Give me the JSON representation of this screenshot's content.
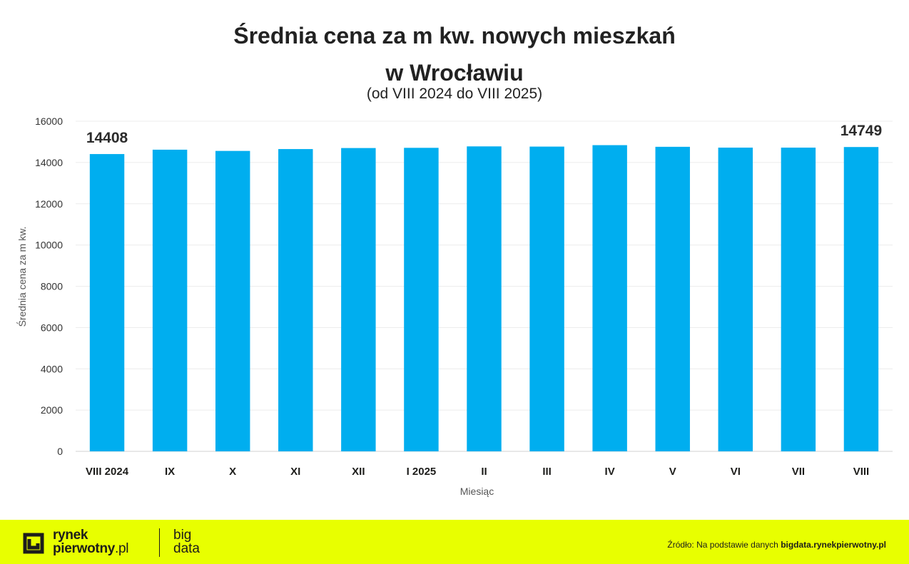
{
  "chart_data": {
    "type": "bar",
    "title_line1": "Średnia cena za m kw. nowych mieszkań",
    "title_line2": "w Wrocławiu",
    "subtitle": "(od VIII 2024 do VIII 2025)",
    "xlabel": "Miesiąc",
    "ylabel": "Średnia cena za m kw.",
    "categories": [
      "VIII 2024",
      "IX",
      "X",
      "XI",
      "XII",
      "I 2025",
      "II",
      "III",
      "IV",
      "V",
      "VI",
      "VII",
      "VIII"
    ],
    "values": [
      14408,
      14620,
      14560,
      14650,
      14700,
      14710,
      14780,
      14770,
      14840,
      14760,
      14720,
      14720,
      14749
    ],
    "data_labels": [
      {
        "index": 0,
        "text": "14408"
      },
      {
        "index": 12,
        "text": "14749"
      }
    ],
    "ylim": [
      0,
      16000
    ],
    "yticks": [
      0,
      2000,
      4000,
      6000,
      8000,
      10000,
      12000,
      14000,
      16000
    ],
    "grid": true,
    "legend": "none",
    "bar_color": "#00aeef"
  },
  "footer": {
    "logo_line1": "rynek",
    "logo_line2_bold": "pierwotny",
    "logo_line2_light": ".pl",
    "brand2_line1": "big",
    "brand2_line2": "data",
    "source_prefix": "Źródło: Na podstawie danych",
    "source_site": "bigdata.rynekpierwotny.pl",
    "background_color": "#e8ff00"
  }
}
